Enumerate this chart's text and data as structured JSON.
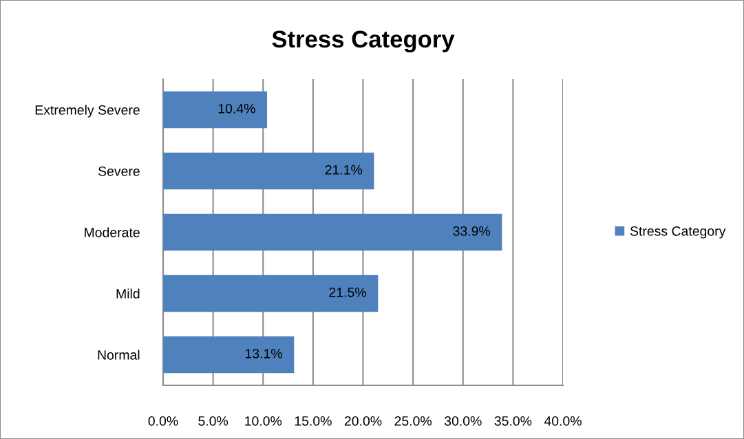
{
  "chart_data": {
    "type": "bar",
    "orientation": "horizontal",
    "title": "Stress Category",
    "categories": [
      "Extremely Severe",
      "Severe",
      "Moderate",
      "Mild",
      "Normal"
    ],
    "series": [
      {
        "name": "Stress Category",
        "color": "#4f81bd",
        "values": [
          10.4,
          21.1,
          33.9,
          21.5,
          13.1
        ],
        "value_labels": [
          "10.4%",
          "21.1%",
          "33.9%",
          "21.5%",
          "13.1%"
        ]
      }
    ],
    "xlim": [
      0,
      40
    ],
    "xticks": [
      {
        "value": 0,
        "label": "0.0%"
      },
      {
        "value": 5,
        "label": "5.0%"
      },
      {
        "value": 10,
        "label": "10.0%"
      },
      {
        "value": 15,
        "label": "15.0%"
      },
      {
        "value": 20,
        "label": "20.0%"
      },
      {
        "value": 25,
        "label": "25.0%"
      },
      {
        "value": 30,
        "label": "30.0%"
      },
      {
        "value": 35,
        "label": "35.0%"
      },
      {
        "value": 40,
        "label": "40.0%"
      }
    ],
    "grid": "x",
    "legend": "right"
  }
}
